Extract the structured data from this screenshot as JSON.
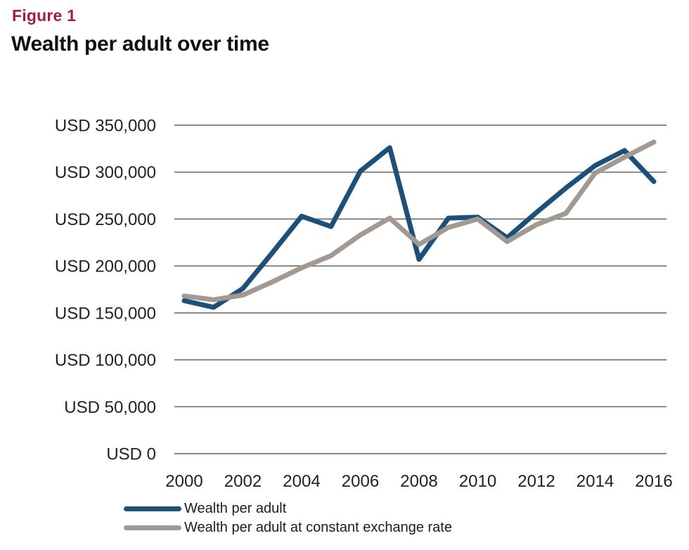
{
  "figure_label": "Figure 1",
  "title": "Wealth per adult over time",
  "colors": {
    "figure_label": "#a51c3c",
    "title": "#111111",
    "gridline": "#7a7a7a",
    "axis_text": "#222222",
    "legend_text": "#1d1d1d"
  },
  "chart_data": {
    "type": "line",
    "x": [
      2000,
      2001,
      2002,
      2003,
      2004,
      2005,
      2006,
      2007,
      2008,
      2009,
      2010,
      2011,
      2012,
      2013,
      2014,
      2015,
      2016
    ],
    "series": [
      {
        "name": "Wealth per adult",
        "color": "#1d5078",
        "values": [
          163000,
          156000,
          176000,
          214000,
          253000,
          242000,
          301000,
          326000,
          207000,
          251000,
          252000,
          230000,
          257000,
          283000,
          307000,
          323000,
          290000
        ]
      },
      {
        "name": "Wealth per adult at constant exchange rate",
        "color": "#a29a92",
        "values": [
          168000,
          164000,
          169000,
          183000,
          198000,
          211000,
          233000,
          251000,
          223000,
          241000,
          250000,
          226000,
          244000,
          256000,
          299000,
          316000,
          332000
        ]
      }
    ],
    "x_tick_labels": [
      "2000",
      "2002",
      "2004",
      "2006",
      "2008",
      "2010",
      "2012",
      "2014",
      "2016"
    ],
    "y_tick_labels": [
      "USD 350,000",
      "USD 300,000",
      "USD 250,000",
      "USD 200,000",
      "USD 150,000",
      "USD 100,000",
      "USD 50,000",
      "USD 0"
    ],
    "y_tick_values": [
      350000,
      300000,
      250000,
      200000,
      150000,
      100000,
      50000,
      0
    ],
    "ylim": [
      0,
      350000
    ],
    "xlabel": "",
    "ylabel": "",
    "grid": true,
    "legend_position": "bottom-left"
  }
}
